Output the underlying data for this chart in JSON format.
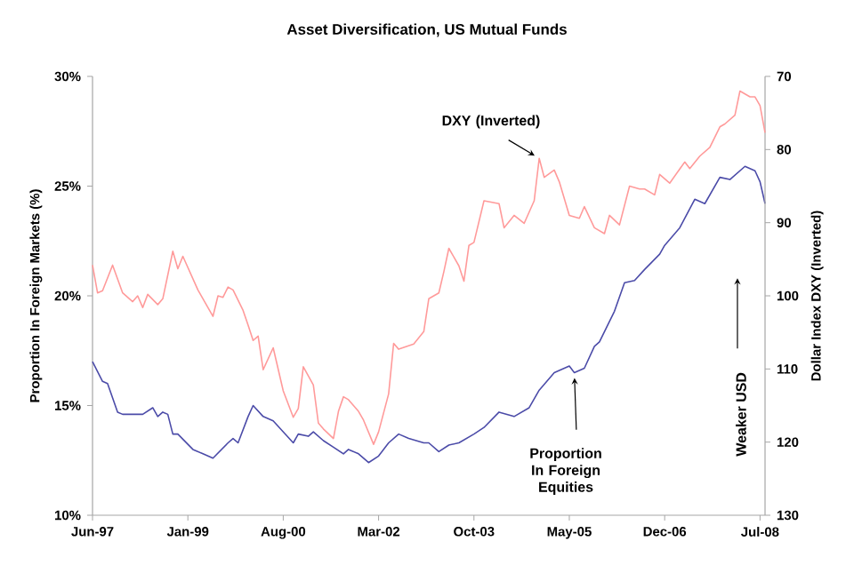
{
  "chart_data": {
    "type": "line",
    "title": "Asset Diversification, US Mutual Funds",
    "ylabel": "Proportion In Foreign Markets (%)",
    "y2label": "Dollar Index DXY (Inverted)",
    "xlim": [
      "1997-06",
      "2008-08"
    ],
    "xticks": [
      {
        "value": "1997-06",
        "label": "Jun-97"
      },
      {
        "value": "1999-01",
        "label": "Jan-99"
      },
      {
        "value": "2000-08",
        "label": "Aug-00"
      },
      {
        "value": "2002-03",
        "label": "Mar-02"
      },
      {
        "value": "2003-10",
        "label": "Oct-03"
      },
      {
        "value": "2005-05",
        "label": "May-05"
      },
      {
        "value": "2006-12",
        "label": "Dec-06"
      },
      {
        "value": "2008-07",
        "label": "Jul-08"
      }
    ],
    "ylim": [
      10,
      30
    ],
    "yticks": [
      {
        "value": 10,
        "label": "10%"
      },
      {
        "value": 15,
        "label": "15%"
      },
      {
        "value": 20,
        "label": "20%"
      },
      {
        "value": 25,
        "label": "25%"
      },
      {
        "value": 30,
        "label": "30%"
      }
    ],
    "y2lim": [
      130,
      70
    ],
    "y2ticks": [
      70,
      80,
      90,
      100,
      110,
      120,
      130
    ],
    "annotations": [
      "Weaker USD"
    ],
    "series": [
      {
        "name": "Proportion In Foreign Equities",
        "color": "#4b4ba8",
        "x": [
          "1997-06",
          "1997-08",
          "1997-09",
          "1997-11",
          "1997-12",
          "1998-04",
          "1998-06",
          "1998-07",
          "1998-08",
          "1998-09",
          "1998-10",
          "1998-11",
          "1999-02",
          "1999-04",
          "1999-06",
          "1999-09",
          "1999-10",
          "1999-11",
          "2000-01",
          "2000-02",
          "2000-04",
          "2000-06",
          "2000-08",
          "2000-10",
          "2000-11",
          "2001-01",
          "2001-02",
          "2001-04",
          "2001-06",
          "2001-08",
          "2001-09",
          "2001-11",
          "2002-01",
          "2002-03",
          "2002-05",
          "2002-07",
          "2002-09",
          "2002-12",
          "2003-01",
          "2003-03",
          "2003-05",
          "2003-07",
          "2003-10",
          "2003-12",
          "2004-03",
          "2004-06",
          "2004-09",
          "2004-11",
          "2005-02",
          "2005-05",
          "2005-06",
          "2005-08",
          "2005-10",
          "2005-11",
          "2006-02",
          "2006-04",
          "2006-06",
          "2006-08",
          "2006-11",
          "2006-12",
          "2007-03",
          "2007-06",
          "2007-08",
          "2007-11",
          "2008-01",
          "2008-04",
          "2008-06",
          "2008-07",
          "2008-08"
        ],
        "values": [
          17.0,
          16.1,
          16.0,
          14.7,
          14.6,
          14.6,
          14.9,
          14.5,
          14.7,
          14.6,
          13.7,
          13.7,
          13.0,
          12.8,
          12.6,
          13.3,
          13.5,
          13.3,
          14.5,
          15.0,
          14.5,
          14.3,
          13.8,
          13.3,
          13.7,
          13.6,
          13.8,
          13.4,
          13.1,
          12.8,
          13.0,
          12.8,
          12.4,
          12.7,
          13.3,
          13.7,
          13.5,
          13.3,
          13.3,
          12.9,
          13.2,
          13.3,
          13.7,
          14.0,
          14.7,
          14.5,
          14.9,
          15.7,
          16.5,
          16.8,
          16.5,
          16.7,
          17.7,
          17.9,
          19.3,
          20.6,
          20.7,
          21.2,
          21.9,
          22.3,
          23.1,
          24.4,
          24.2,
          25.4,
          25.3,
          25.9,
          25.7,
          25.2,
          24.2
        ]
      },
      {
        "name": "DXY (Inverted)",
        "color": "#ff9a9a",
        "axis": "y2",
        "x": [
          "1997-06",
          "1997-07",
          "1997-08",
          "1997-10",
          "1997-12",
          "1998-02",
          "1998-03",
          "1998-04",
          "1998-05",
          "1998-07",
          "1998-08",
          "1998-10",
          "1998-11",
          "1998-12",
          "1999-03",
          "1999-06",
          "1999-07",
          "1999-08",
          "1999-09",
          "1999-10",
          "1999-12",
          "2000-01",
          "2000-02",
          "2000-03",
          "2000-04",
          "2000-06",
          "2000-08",
          "2000-10",
          "2000-11",
          "2000-12",
          "2001-02",
          "2001-03",
          "2001-04",
          "2001-06",
          "2001-07",
          "2001-08",
          "2001-09",
          "2001-11",
          "2001-12",
          "2002-02",
          "2002-03",
          "2002-05",
          "2002-06",
          "2002-07",
          "2002-10",
          "2002-12",
          "2003-01",
          "2003-03",
          "2003-04",
          "2003-05",
          "2003-07",
          "2003-08",
          "2003-09",
          "2003-10",
          "2003-12",
          "2004-03",
          "2004-04",
          "2004-06",
          "2004-08",
          "2004-10",
          "2004-11",
          "2004-12",
          "2005-02",
          "2005-03",
          "2005-05",
          "2005-07",
          "2005-08",
          "2005-10",
          "2005-12",
          "2006-01",
          "2006-03",
          "2006-05",
          "2006-07",
          "2006-08",
          "2006-10",
          "2006-11",
          "2007-01",
          "2007-04",
          "2007-05",
          "2007-07",
          "2007-09",
          "2007-11",
          "2007-12",
          "2008-02",
          "2008-03",
          "2008-05",
          "2008-06",
          "2008-07",
          "2008-08"
        ],
        "values": [
          95.8,
          99.6,
          99.3,
          95.8,
          99.6,
          100.8,
          100.0,
          101.6,
          99.8,
          101.2,
          100.4,
          93.9,
          96.3,
          94.6,
          99.2,
          102.8,
          100.0,
          100.2,
          98.8,
          99.2,
          102.0,
          104.0,
          106.1,
          105.5,
          110.1,
          107.1,
          113.0,
          116.6,
          115.4,
          109.7,
          112.2,
          117.4,
          118.2,
          119.5,
          115.8,
          113.8,
          114.2,
          115.8,
          117.0,
          120.3,
          118.6,
          113.4,
          106.5,
          107.3,
          106.6,
          104.9,
          100.4,
          99.6,
          96.7,
          93.5,
          95.9,
          98.0,
          93.1,
          92.7,
          87.0,
          87.4,
          90.7,
          89.0,
          90.1,
          87.0,
          81.2,
          83.8,
          82.8,
          84.4,
          89.0,
          89.4,
          87.8,
          90.7,
          91.5,
          89.0,
          90.3,
          85.0,
          85.4,
          85.4,
          86.2,
          83.4,
          84.6,
          81.7,
          82.6,
          80.9,
          79.7,
          76.9,
          76.5,
          75.3,
          72.0,
          72.8,
          72.8,
          74.0,
          77.7
        ]
      }
    ]
  }
}
